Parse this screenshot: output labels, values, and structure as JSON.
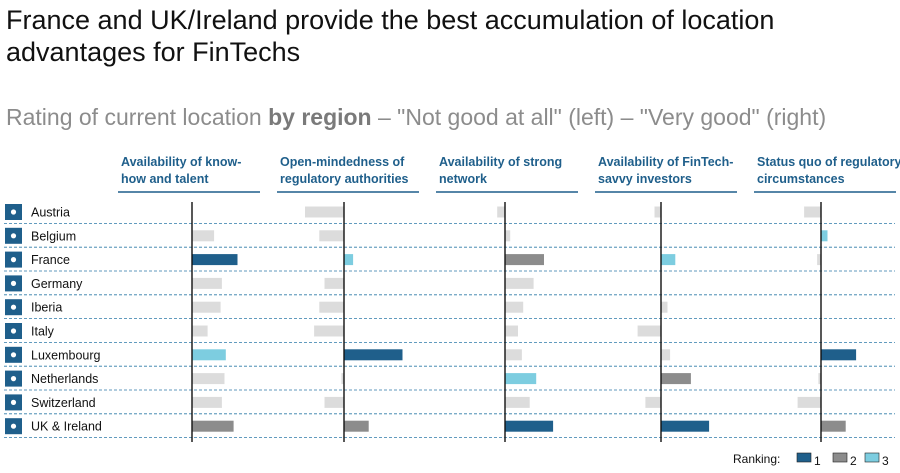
{
  "header": {
    "title": "France and UK/Ireland provide the best accumulation of location advantages for FinTechs",
    "subtitle_pre": "Rating of current location ",
    "subtitle_bold": "by region",
    "subtitle_post": " – \"Not good at all\" (left) – \"Very good\" (right)"
  },
  "colors": {
    "rank1": "#1f5f8b",
    "rank2": "#8c8c8c",
    "rank3": "#7dcde0",
    "neutral": "#dcdcdc",
    "accent": "#1f5f8b"
  },
  "chart_data": {
    "type": "bar",
    "orientation": "horizontal",
    "value_scale": "diverging, relative rating (left = Not good at all, right = Very good)",
    "xlim": [
      -1,
      1
    ],
    "categories": [
      "Austria",
      "Belgium",
      "France",
      "Germany",
      "Iberia",
      "Italy",
      "Luxembourg",
      "Netherlands",
      "Switzerland",
      "UK & Ireland"
    ],
    "panels": [
      {
        "title_lines": [
          "Availability of know-",
          "how and talent"
        ],
        "values": [
          0.0,
          0.17,
          0.35,
          0.23,
          0.22,
          0.12,
          0.26,
          0.25,
          0.23,
          0.32
        ],
        "ranks": [
          0,
          0,
          1,
          0,
          0,
          0,
          3,
          0,
          0,
          2
        ]
      },
      {
        "title_lines": [
          "Open-mindedness of",
          "regulatory authorities"
        ],
        "values": [
          -0.3,
          -0.19,
          0.07,
          -0.15,
          -0.19,
          -0.23,
          0.45,
          -0.02,
          -0.15,
          0.19
        ],
        "ranks": [
          0,
          0,
          3,
          0,
          0,
          0,
          1,
          0,
          0,
          2
        ]
      },
      {
        "title_lines": [
          "Availability of strong",
          "network"
        ],
        "values": [
          -0.06,
          0.04,
          0.3,
          0.22,
          0.14,
          0.1,
          0.13,
          0.24,
          0.19,
          0.37
        ],
        "ranks": [
          0,
          0,
          2,
          0,
          0,
          0,
          0,
          3,
          0,
          1
        ]
      },
      {
        "title_lines": [
          "Availability of FinTech-",
          "savvy investors"
        ],
        "values": [
          -0.05,
          0.0,
          0.11,
          0.0,
          0.05,
          -0.18,
          0.07,
          0.23,
          -0.12,
          0.37
        ],
        "ranks": [
          0,
          0,
          3,
          0,
          0,
          0,
          0,
          2,
          0,
          1
        ]
      },
      {
        "title_lines": [
          "Status quo of regulatory",
          "circumstances"
        ],
        "values": [
          -0.13,
          0.05,
          -0.03,
          0.0,
          0.0,
          0.0,
          0.27,
          -0.02,
          -0.18,
          0.19
        ],
        "ranks": [
          0,
          3,
          0,
          0,
          0,
          0,
          1,
          0,
          0,
          2
        ]
      }
    ]
  },
  "legend": {
    "title": "Ranking:",
    "items": [
      {
        "rank": 1,
        "label": "1"
      },
      {
        "rank": 2,
        "label": "2"
      },
      {
        "rank": 3,
        "label": "3"
      }
    ]
  }
}
